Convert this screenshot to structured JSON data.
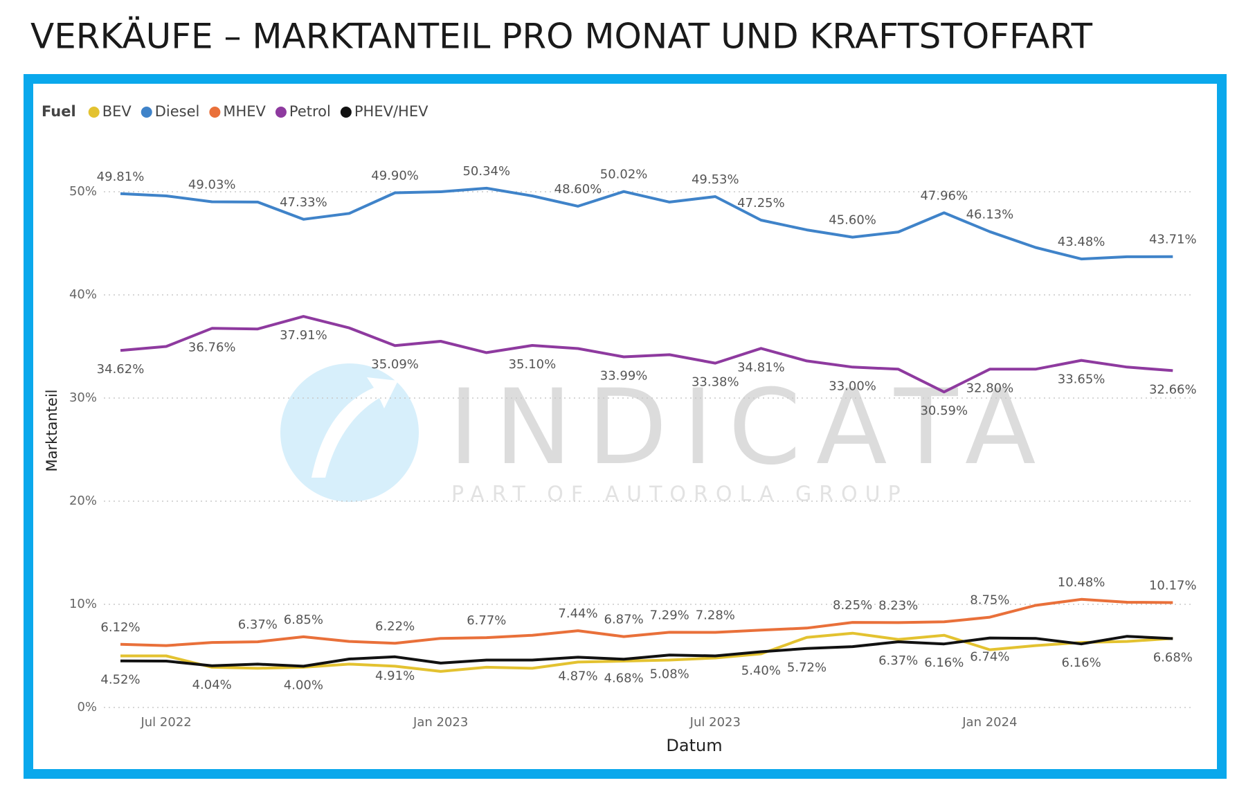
{
  "chart_data": {
    "type": "line",
    "title": "VERKÄUFE – MARKTANTEIL PRO MONAT UND KRAFTSTOFFART",
    "x_label": "Datum",
    "y_label": "Marktanteil",
    "legend_title": "Fuel",
    "legend": "top-left",
    "grid": true,
    "watermark": {
      "text": "INDICATA",
      "subtext": "PART OF AUTOROLA GROUP"
    },
    "categories": [
      null,
      "Jul 2022",
      null,
      null,
      null,
      null,
      null,
      "Jan 2023",
      null,
      null,
      null,
      null,
      null,
      "Jul 2023",
      null,
      null,
      null,
      null,
      null,
      "Jan 2024",
      null,
      null,
      null,
      null
    ],
    "ylim": [
      0,
      53
    ],
    "yticks": [
      {
        "value": 0,
        "label": "0%"
      },
      {
        "value": 10,
        "label": "10%"
      },
      {
        "value": 20,
        "label": "20%"
      },
      {
        "value": 30,
        "label": "30%"
      },
      {
        "value": 40,
        "label": "40%"
      },
      {
        "value": 50,
        "label": "50%"
      }
    ],
    "series": [
      {
        "name": "BEV",
        "color": "#e3c230",
        "values": [
          5.0,
          5.0,
          3.9,
          3.8,
          3.9,
          4.2,
          4.0,
          3.5,
          3.9,
          3.8,
          4.4,
          4.5,
          4.6,
          4.8,
          5.2,
          6.8,
          7.2,
          6.6,
          7.0,
          5.6,
          6.0,
          6.3,
          6.4,
          6.7
        ],
        "value_labels": [
          null,
          null,
          null,
          null,
          null,
          null,
          null,
          null,
          null,
          null,
          null,
          null,
          null,
          null,
          null,
          null,
          null,
          null,
          null,
          null,
          null,
          null,
          null,
          null
        ]
      },
      {
        "name": "Diesel",
        "color": "#3f83c9",
        "values": [
          49.81,
          49.6,
          49.03,
          49.0,
          47.33,
          47.9,
          49.9,
          50.0,
          50.34,
          49.6,
          48.6,
          50.02,
          49.0,
          49.53,
          47.25,
          46.3,
          45.6,
          46.1,
          47.96,
          46.13,
          44.6,
          43.48,
          43.7,
          43.71
        ],
        "value_labels": [
          "49.81%",
          null,
          "49.03%",
          null,
          "47.33%",
          null,
          "49.90%",
          null,
          "50.34%",
          null,
          "48.60%",
          "50.02%",
          null,
          "49.53%",
          "47.25%",
          null,
          "45.60%",
          null,
          "47.96%",
          "46.13%",
          null,
          "43.48%",
          null,
          "43.71%"
        ]
      },
      {
        "name": "MHEV",
        "color": "#e9703a",
        "values": [
          6.12,
          6.0,
          6.3,
          6.37,
          6.85,
          6.4,
          6.22,
          6.7,
          6.77,
          7.0,
          7.44,
          6.87,
          7.29,
          7.28,
          7.5,
          7.7,
          8.25,
          8.23,
          8.3,
          8.75,
          9.9,
          10.48,
          10.2,
          10.17
        ],
        "value_labels": [
          "6.12%",
          null,
          null,
          "6.37%",
          "6.85%",
          null,
          "6.22%",
          null,
          "6.77%",
          null,
          "7.44%",
          "6.87%",
          "7.29%",
          "7.28%",
          null,
          null,
          "8.25%",
          "8.23%",
          null,
          "8.75%",
          null,
          "10.48%",
          null,
          "10.17%"
        ]
      },
      {
        "name": "Petrol",
        "color": "#8e3a9f",
        "values": [
          34.62,
          35.0,
          36.76,
          36.7,
          37.91,
          36.8,
          35.09,
          35.5,
          34.4,
          35.1,
          34.8,
          33.99,
          34.2,
          33.38,
          34.81,
          33.6,
          33.0,
          32.8,
          30.59,
          32.8,
          32.8,
          33.65,
          33.0,
          32.66
        ],
        "value_labels": [
          "34.62%",
          null,
          "36.76%",
          null,
          "37.91%",
          null,
          "35.09%",
          null,
          null,
          "35.10%",
          null,
          "33.99%",
          null,
          "33.38%",
          "34.81%",
          null,
          "33.00%",
          null,
          "30.59%",
          "32.80%",
          null,
          "33.65%",
          null,
          "32.66%"
        ]
      },
      {
        "name": "PHEV/HEV",
        "color": "#111111",
        "values": [
          4.52,
          4.5,
          4.04,
          4.2,
          4.0,
          4.7,
          4.91,
          4.3,
          4.6,
          4.6,
          4.87,
          4.68,
          5.08,
          5.0,
          5.4,
          5.72,
          5.9,
          6.37,
          6.16,
          6.74,
          6.7,
          6.16,
          6.9,
          6.68
        ],
        "value_labels": [
          "4.52%",
          null,
          "4.04%",
          null,
          "4.00%",
          null,
          "4.91%",
          null,
          null,
          null,
          "4.87%",
          "4.68%",
          "5.08%",
          null,
          "5.40%",
          "5.72%",
          null,
          "6.37%",
          "6.16%",
          "6.74%",
          null,
          "6.16%",
          null,
          "6.68%"
        ]
      }
    ]
  }
}
